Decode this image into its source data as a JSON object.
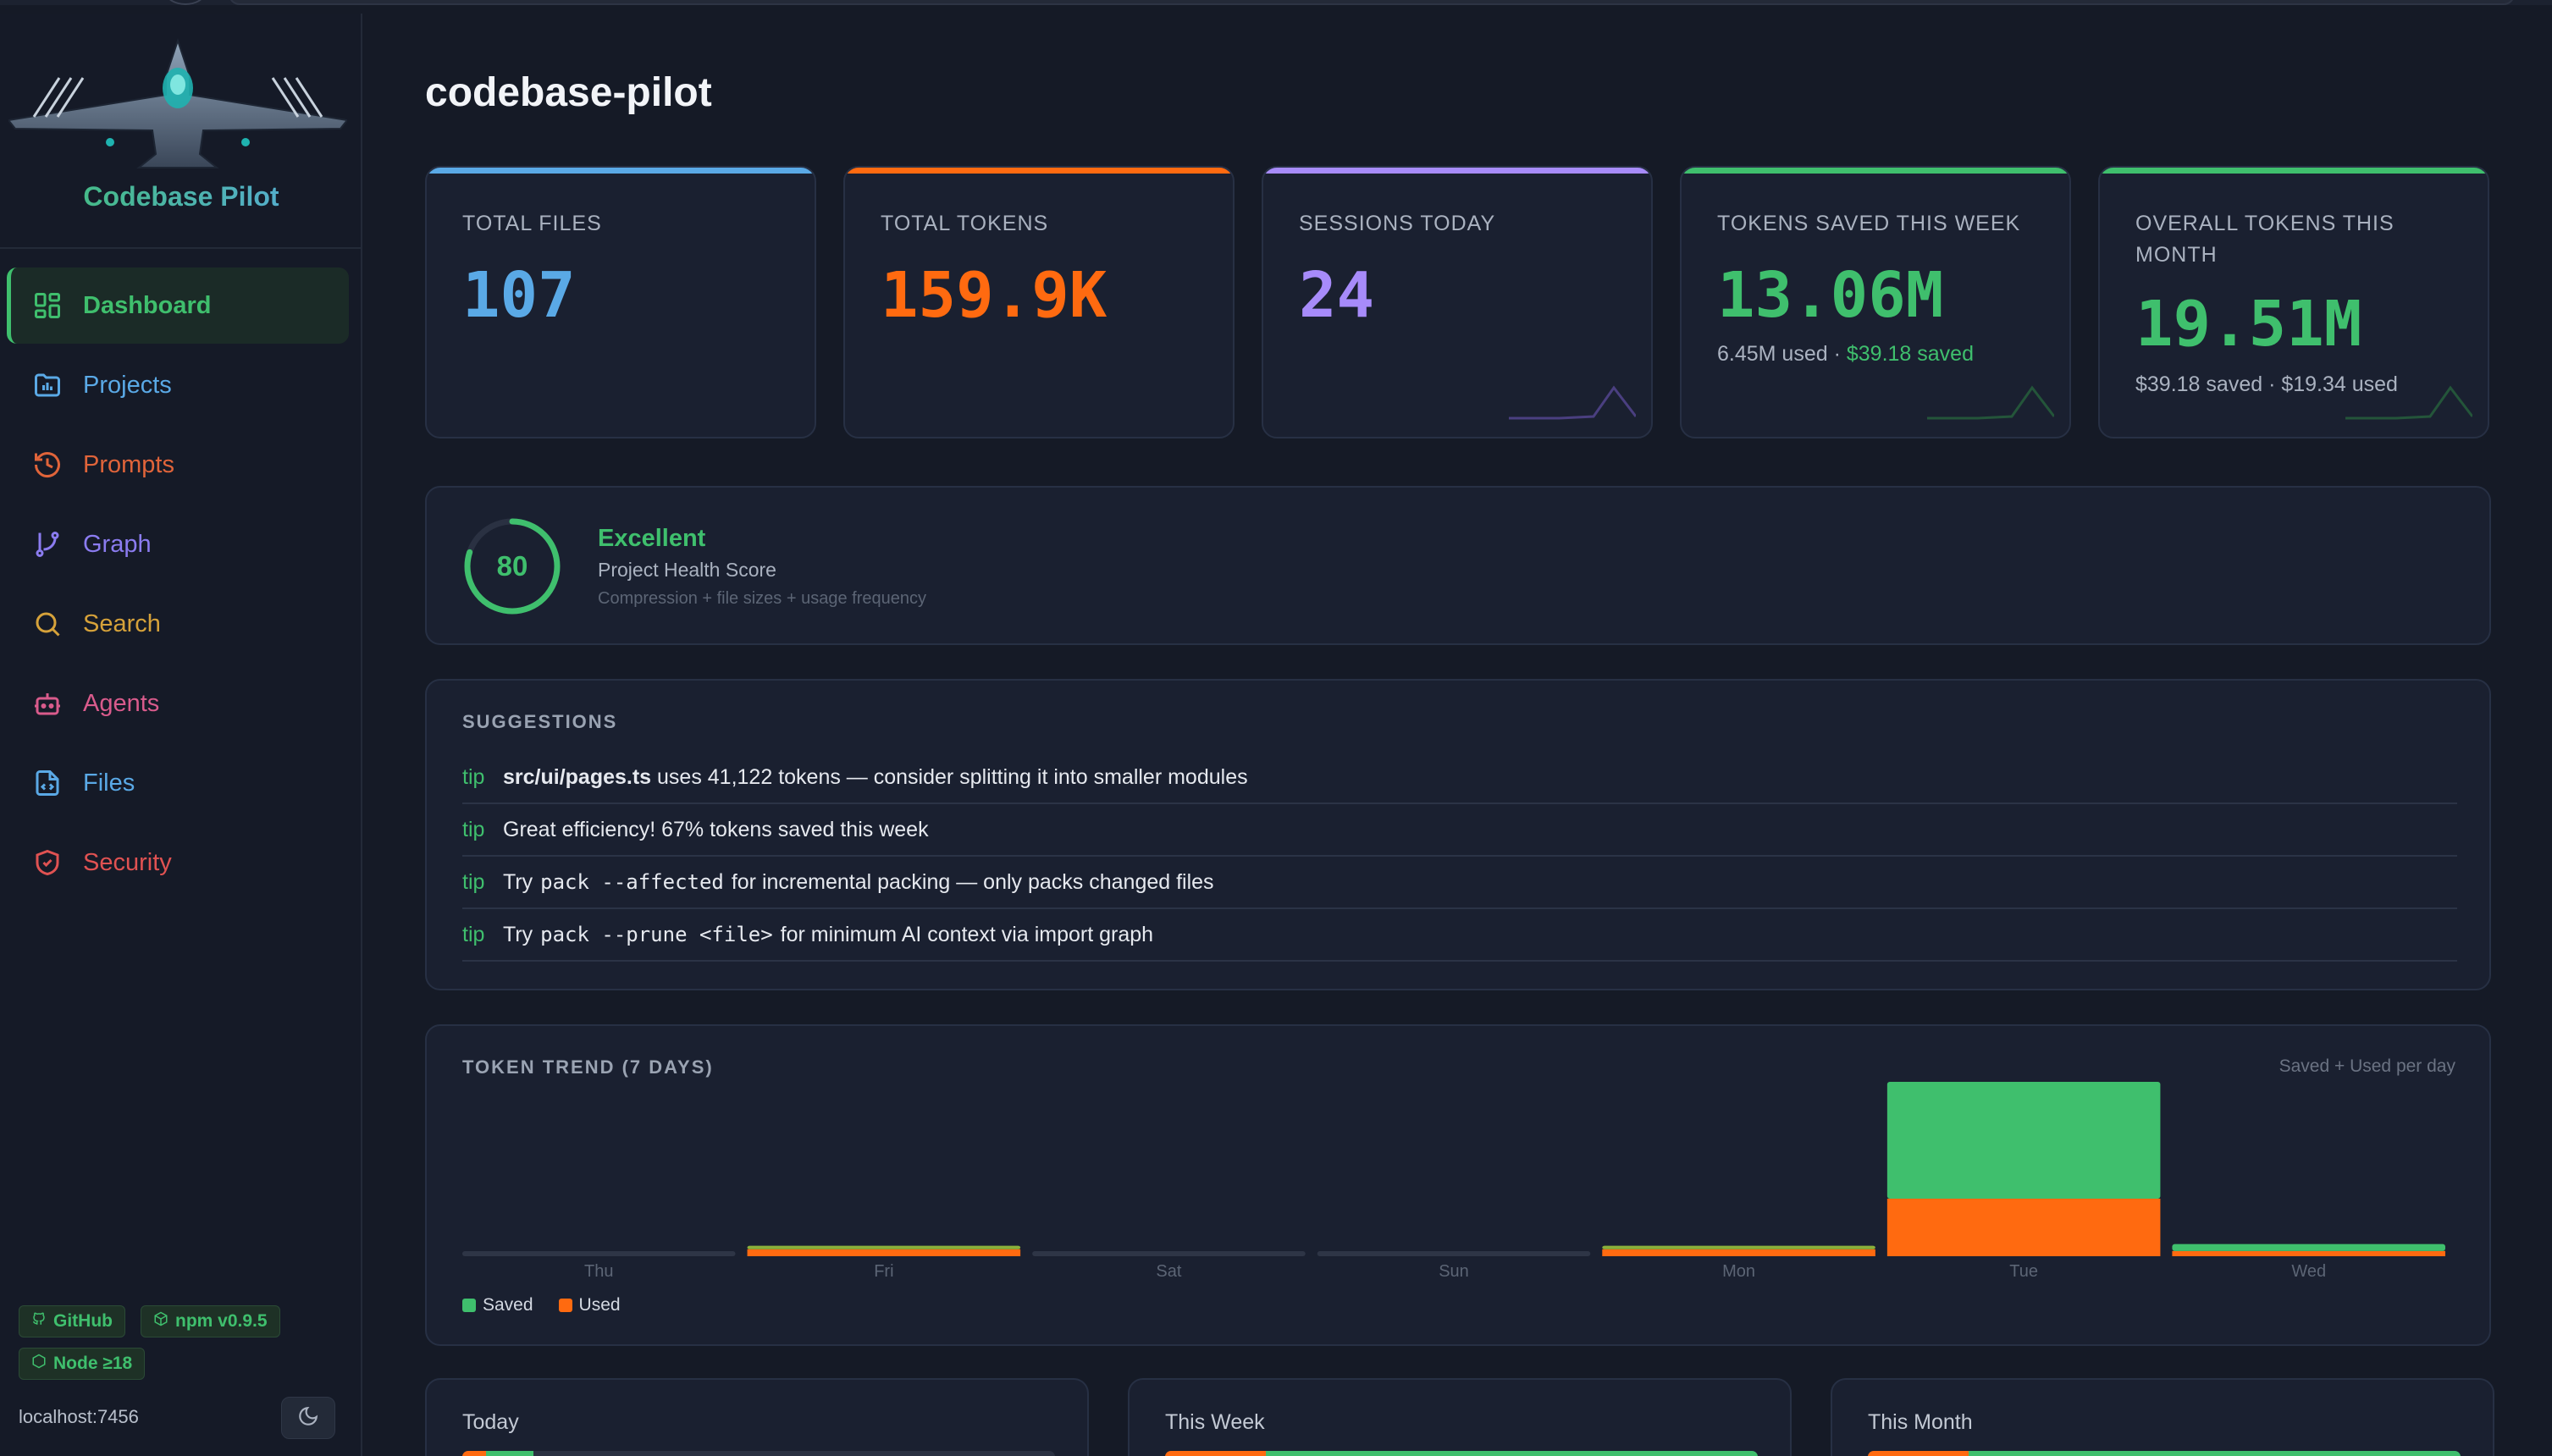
{
  "app": {
    "name": "Codebase Pilot",
    "page_title": "codebase-pilot",
    "host": "localhost:7456"
  },
  "colors": {
    "green": "#3fbf6d",
    "blue": "#5aa9e6",
    "orange": "#ff6a10",
    "purple": "#a78bfa",
    "red": "#e05252",
    "yellow": "#d6a23a",
    "pink": "#d95b8c"
  },
  "sidebar": {
    "items": [
      {
        "label": "Dashboard",
        "icon": "dashboard-grid-icon",
        "color": "#3fbf6d",
        "active": true
      },
      {
        "label": "Projects",
        "icon": "folder-icon",
        "color": "#5aa9e6"
      },
      {
        "label": "Prompts",
        "icon": "history-icon",
        "color": "#e0643a"
      },
      {
        "label": "Graph",
        "icon": "git-branch-icon",
        "color": "#8b7cf0"
      },
      {
        "label": "Search",
        "icon": "search-icon",
        "color": "#d6a23a"
      },
      {
        "label": "Agents",
        "icon": "robot-icon",
        "color": "#d95b8c"
      },
      {
        "label": "Files",
        "icon": "file-code-icon",
        "color": "#5aa9e6"
      },
      {
        "label": "Security",
        "icon": "shield-icon",
        "color": "#e05252"
      }
    ],
    "badges": {
      "github": "GitHub",
      "npm": "npm v0.9.5",
      "node": "Node ≥18"
    }
  },
  "stats": [
    {
      "label": "TOTAL FILES",
      "value": "107",
      "color": "#5aa9e6"
    },
    {
      "label": "TOTAL TOKENS",
      "value": "159.9K",
      "color": "#ff6a10"
    },
    {
      "label": "SESSIONS TODAY",
      "value": "24",
      "color": "#a78bfa"
    },
    {
      "label": "TOKENS SAVED THIS WEEK",
      "value": "13.06M",
      "color": "#3fbf6d",
      "sub_a": "6.45M used · ",
      "sub_b": "$39.18 saved"
    },
    {
      "label": "OVERALL TOKENS THIS MONTH",
      "value": "19.51M",
      "color": "#3fbf6d",
      "sub_a": "$39.18 saved · $19.34 used"
    }
  ],
  "health": {
    "score": "80",
    "score_fraction": 0.8,
    "rating": "Excellent",
    "title": "Project Health Score",
    "note": "Compression + file sizes + usage frequency"
  },
  "suggestions": {
    "label": "SUGGESTIONS",
    "tip_word": "tip",
    "items": [
      {
        "bold": "src/ui/pages.ts",
        "text": " uses 41,122 tokens — consider splitting it into smaller modules"
      },
      {
        "text": "Great efficiency! 67% tokens saved this week"
      },
      {
        "pre": "Try ",
        "code": "pack --affected",
        "text": " for incremental packing — only packs changed files"
      },
      {
        "pre": "Try ",
        "code": "pack --prune <file>",
        "text": " for minimum AI context via import graph"
      }
    ]
  },
  "trend": {
    "label": "TOKEN TREND (7 DAYS)",
    "note": "Saved + Used per day",
    "legend_saved": "Saved",
    "legend_used": "Used"
  },
  "chart_data": {
    "type": "bar",
    "stacked": true,
    "categories": [
      "Thu",
      "Fri",
      "Sat",
      "Sun",
      "Mon",
      "Tue",
      "Wed"
    ],
    "series": [
      {
        "name": "Used",
        "values": [
          0,
          0.04,
          0,
          0,
          0.04,
          0.33,
          0.03
        ],
        "color": "#ff6a10"
      },
      {
        "name": "Saved",
        "values": [
          0,
          0.02,
          0,
          0,
          0.02,
          0.67,
          0.04
        ],
        "color": "#3fbf6d"
      }
    ],
    "ylim": [
      0,
      1
    ],
    "grid": false,
    "legend": "bottom-left"
  },
  "periods": [
    {
      "label": "Today",
      "used_fraction": 0.04,
      "saved_fraction": 0.08
    },
    {
      "label": "This Week",
      "used_fraction": 0.17,
      "saved_fraction": 0.83
    },
    {
      "label": "This Month",
      "used_fraction": 0.17,
      "saved_fraction": 0.83
    }
  ]
}
